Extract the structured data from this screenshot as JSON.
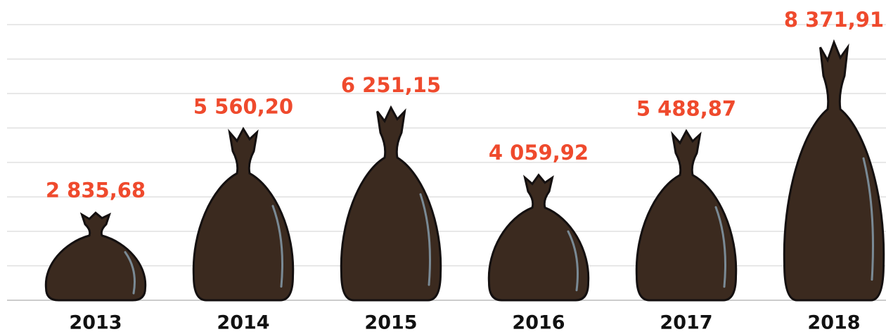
{
  "chart_data": {
    "type": "pictogram",
    "categories": [
      "2013",
      "2014",
      "2015",
      "2016",
      "2017",
      "2018"
    ],
    "values": [
      2835.68,
      5560.2,
      6251.15,
      4059.92,
      5488.87,
      8371.91
    ],
    "value_labels": [
      "2 835,68",
      "5 560,20",
      "6 251,15",
      "4 059,92",
      "5 488,87",
      "8 371,91"
    ],
    "color": "#3b2a1f",
    "label_color": "#ef4a2d"
  }
}
